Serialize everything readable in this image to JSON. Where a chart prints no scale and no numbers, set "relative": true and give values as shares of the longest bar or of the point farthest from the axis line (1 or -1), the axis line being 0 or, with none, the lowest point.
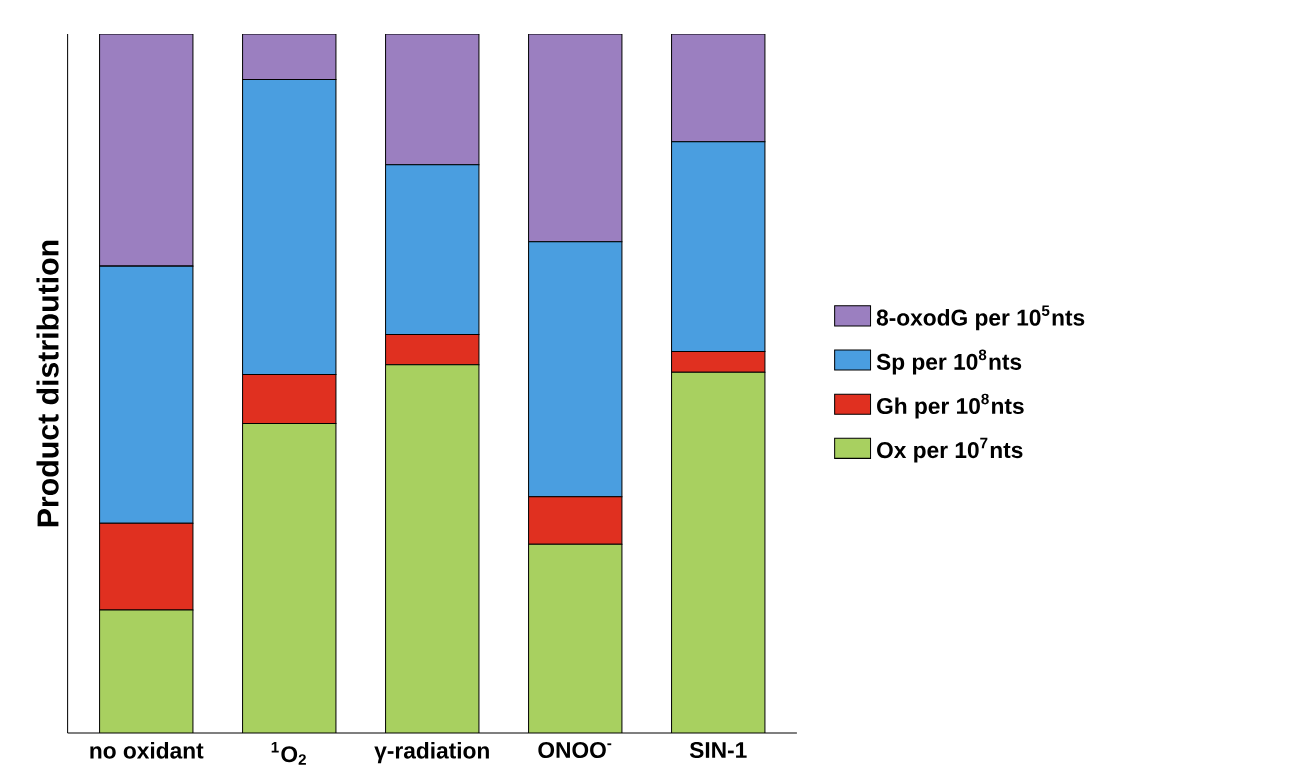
{
  "chart_data": {
    "type": "bar",
    "stacked": true,
    "relative": true,
    "ylabel": "Product distribution",
    "legend": "right",
    "categories": [
      "no oxidant",
      "$^{1}$O$_{2}$",
      "γ-radiation",
      "ONOO$^{-}$",
      "SIN-1"
    ],
    "series": [
      {
        "name": "Ox per 10$^{7}$nts",
        "color": "#a8d060",
        "values": [
          0.176,
          0.443,
          0.527,
          0.27,
          0.516
        ]
      },
      {
        "name": "Gh per 10$^{8}$nts",
        "color": "#e03020",
        "values": [
          0.124,
          0.07,
          0.043,
          0.068,
          0.03
        ]
      },
      {
        "name": "Sp per 10$^{8}$nts",
        "color": "#4a9ee0",
        "values": [
          0.368,
          0.422,
          0.243,
          0.365,
          0.3
        ]
      },
      {
        "name": "8-oxodG per 10$^{5}$nts",
        "color": "#9b7fc0",
        "values": [
          0.332,
          0.065,
          0.187,
          0.297,
          0.154
        ]
      }
    ]
  }
}
